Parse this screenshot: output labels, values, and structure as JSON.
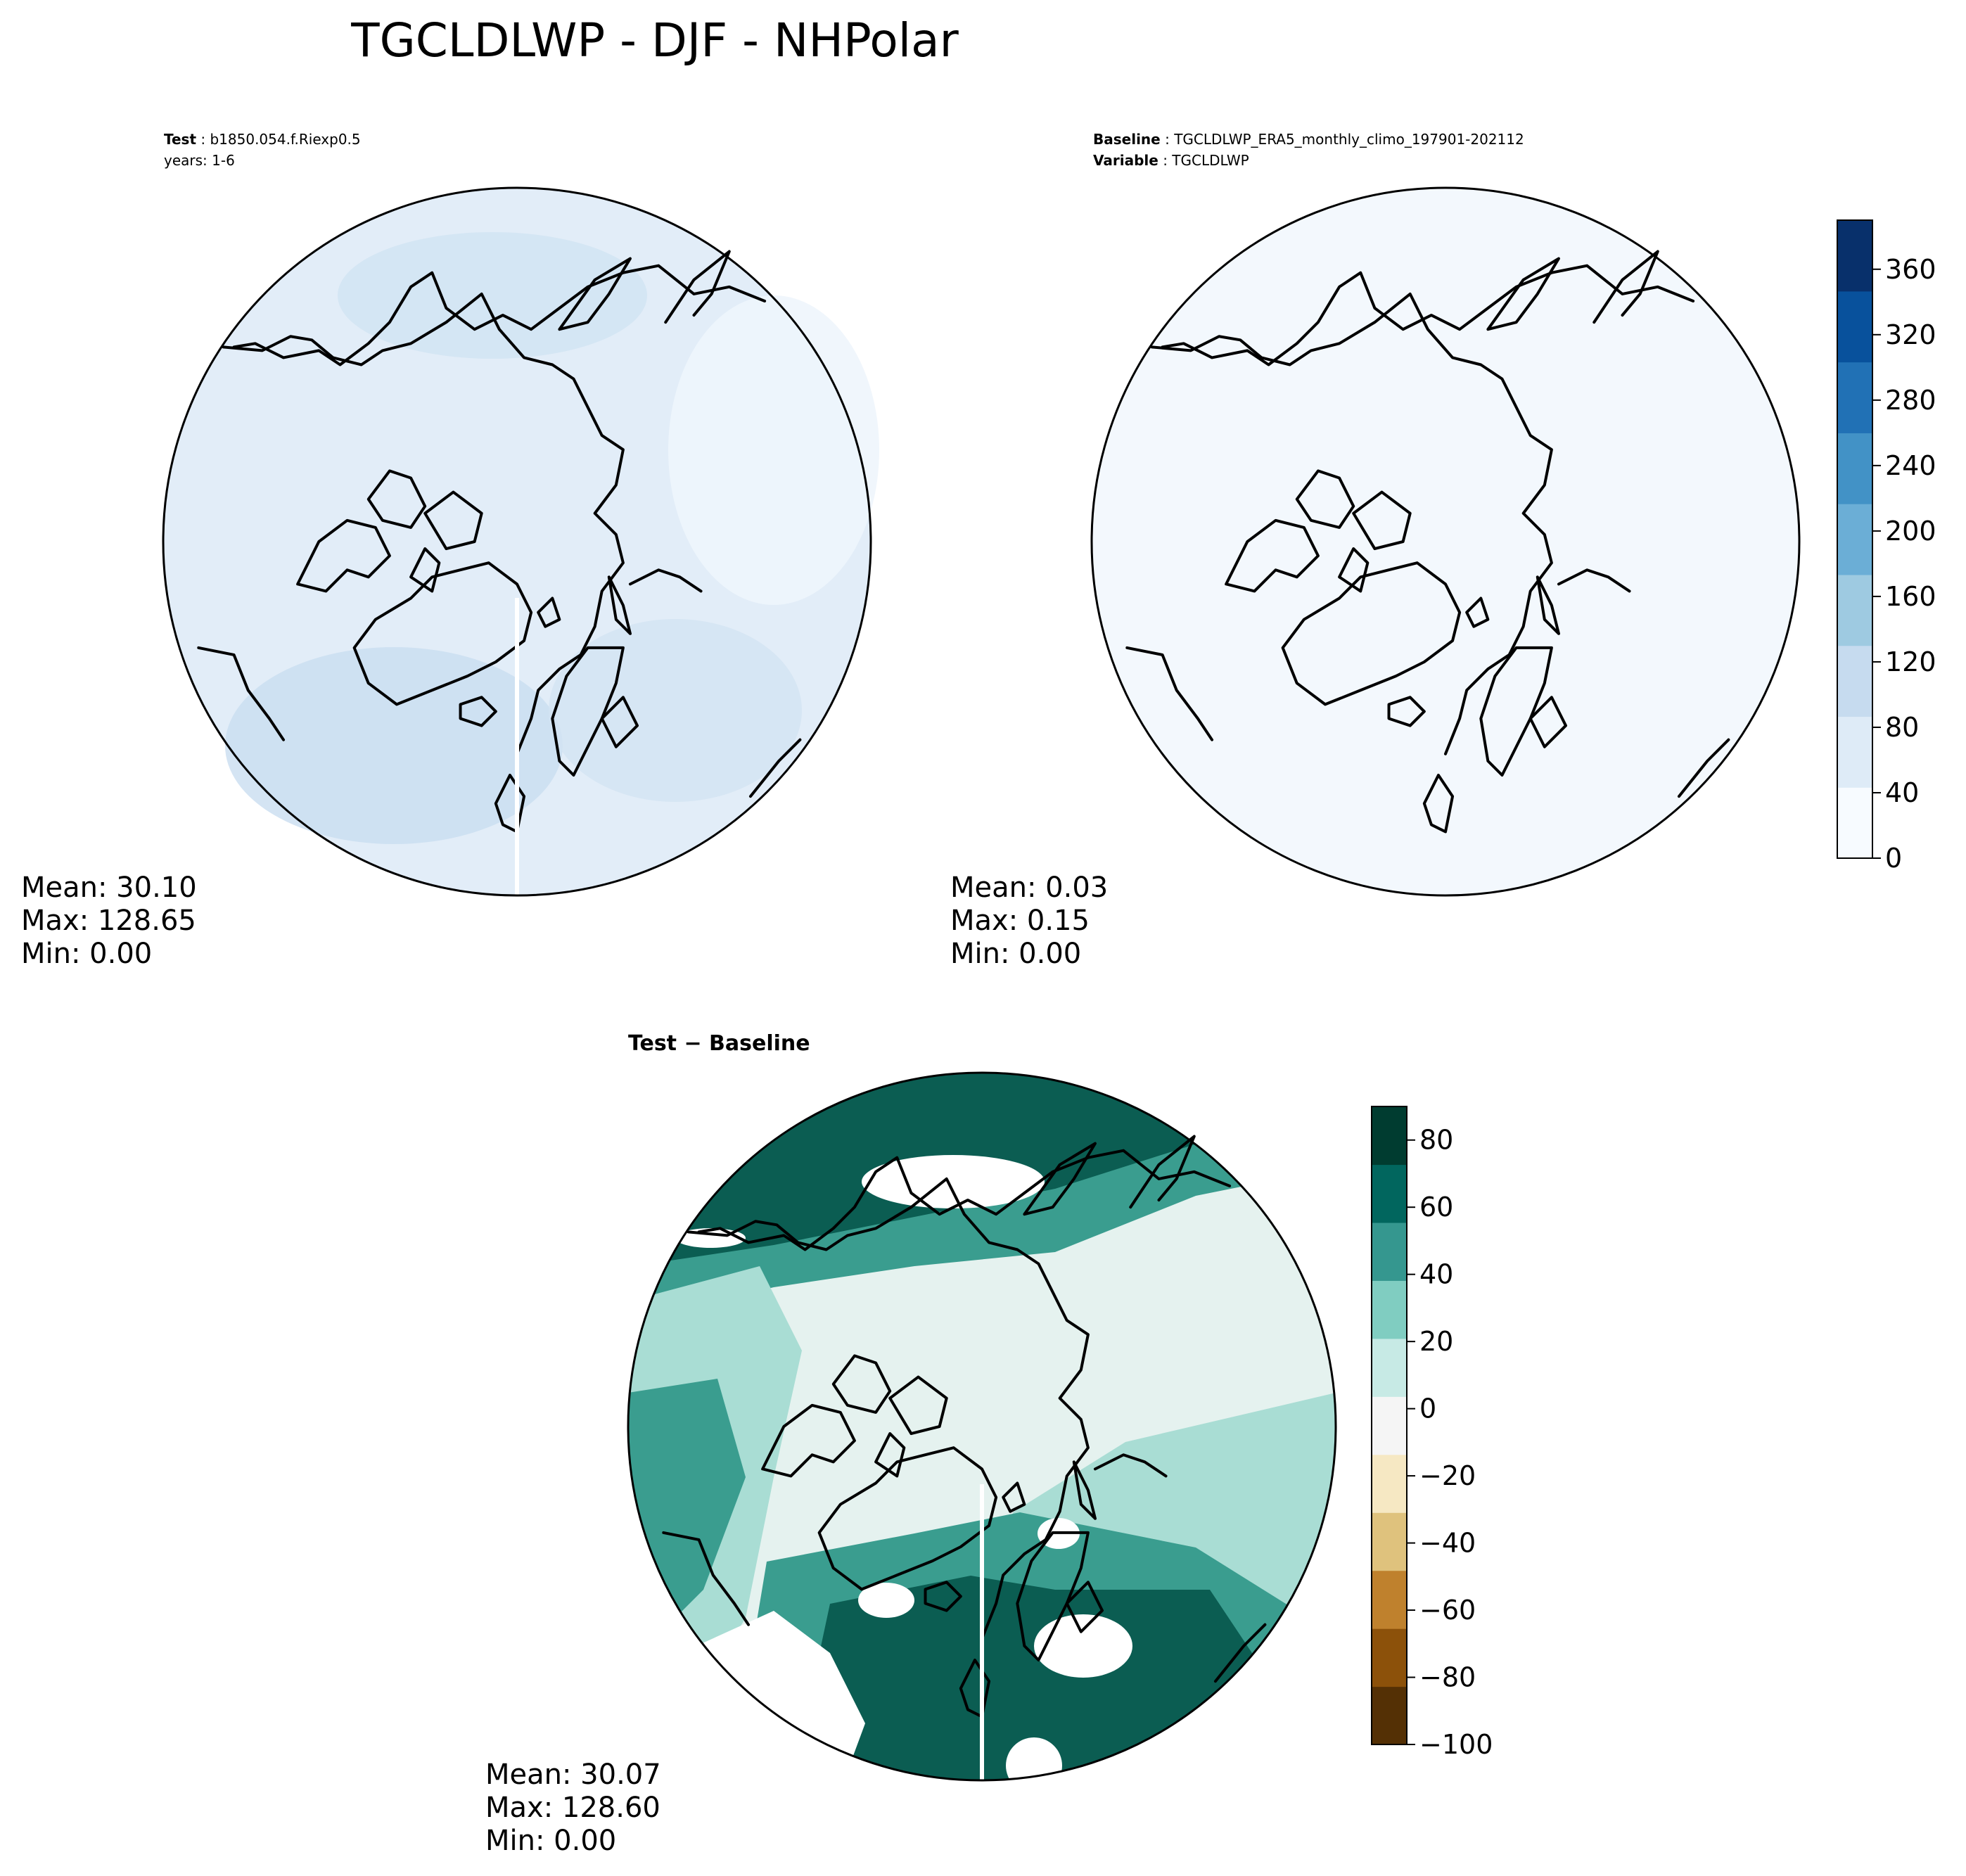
{
  "figure": {
    "title": "TGCLDLWP - DJF - NHPolar"
  },
  "panels": {
    "test": {
      "label_bold": "Test",
      "label_value": "b1850.054.f.Riexp0.5",
      "line2": "years: 1-6",
      "stats": {
        "mean": "Mean: 30.10",
        "max": "Max: 128.65",
        "min": "Min:  0.00"
      }
    },
    "baseline": {
      "label_bold": "Baseline",
      "label_value": "TGCLDLWP_ERA5_monthly_climo_197901-202112",
      "line2_bold": "Variable",
      "line2_value": "TGCLDLWP",
      "stats": {
        "mean": "Mean:  0.03",
        "max": "Max:  0.15",
        "min": "Min:  0.00"
      }
    },
    "diff": {
      "title": "Test − Baseline",
      "stats": {
        "mean": "Mean: 30.07",
        "max": "Max: 128.60",
        "min": "Min:  0.00"
      }
    }
  },
  "colorbars": {
    "main": {
      "colormap": "Blues",
      "range": [
        0,
        390
      ],
      "ticks": [
        "0",
        "40",
        "80",
        "120",
        "160",
        "200",
        "240",
        "280",
        "320",
        "360"
      ],
      "tick_values": [
        0,
        40,
        80,
        120,
        160,
        200,
        240,
        280,
        320,
        360
      ],
      "colors": [
        "#f7fbff",
        "#deebf7",
        "#c6dbef",
        "#9ecae1",
        "#6baed6",
        "#4292c6",
        "#2171b5",
        "#08519c",
        "#08306b"
      ]
    },
    "diff": {
      "colormap": "BrBG",
      "range": [
        -100,
        90
      ],
      "ticks": [
        "80",
        "60",
        "40",
        "20",
        "0",
        "−20",
        "−40",
        "−60",
        "−80",
        "−100"
      ],
      "tick_values": [
        80,
        60,
        40,
        20,
        0,
        -20,
        -40,
        -60,
        -80,
        -100
      ],
      "colors": [
        "#543005",
        "#8c510a",
        "#bf812d",
        "#dfc27d",
        "#f6e8c3",
        "#f5f5f5",
        "#c7eae5",
        "#80cdc1",
        "#35978f",
        "#01665e",
        "#003c30"
      ]
    }
  },
  "map": {
    "projection": "North polar stereographic",
    "region": "NHPolar",
    "land_color": "#000000",
    "test_field_color": "#d6e6f4",
    "baseline_field_color": "#f3f8fd",
    "diff_colors": {
      "high": "#0b5d52",
      "mid": "#3a9d8f",
      "low": "#a9ddd4",
      "near_zero": "#e5f2ef",
      "masked": "#ffffff"
    }
  }
}
